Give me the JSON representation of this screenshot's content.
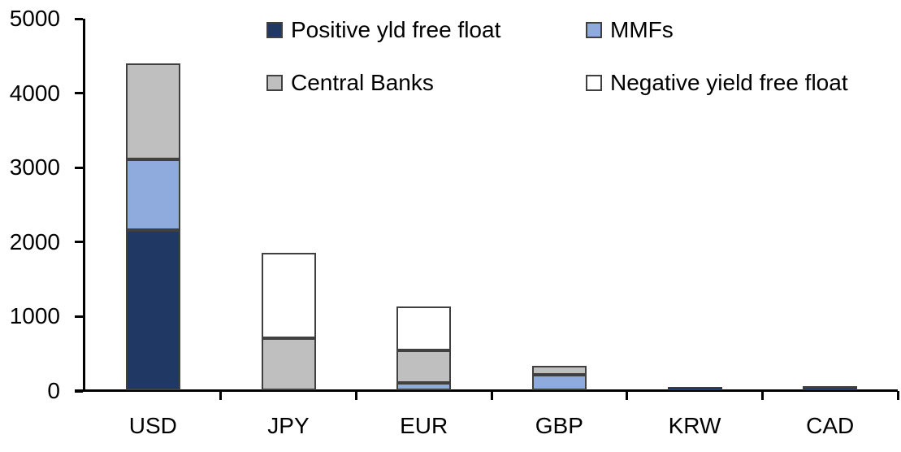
{
  "chart_data": {
    "type": "bar",
    "stacked": true,
    "title": "",
    "xlabel": "",
    "ylabel": "",
    "categories": [
      "USD",
      "JPY",
      "EUR",
      "GBP",
      "KRW",
      "CAD"
    ],
    "series": [
      {
        "name": "Positive yld free float",
        "color": "#1F3864",
        "values": [
          2150,
          0,
          0,
          0,
          45,
          30
        ]
      },
      {
        "name": "MMFs",
        "color": "#8FAADC",
        "values": [
          950,
          0,
          100,
          210,
          0,
          0
        ]
      },
      {
        "name": "Central Banks",
        "color": "#BFBFBF",
        "values": [
          1290,
          700,
          440,
          120,
          0,
          30
        ]
      },
      {
        "name": "Negative yield free float",
        "color": "#FFFFFF",
        "values": [
          0,
          1150,
          580,
          0,
          0,
          0
        ]
      }
    ],
    "totals": [
      4390,
      1850,
      1120,
      330,
      45,
      60
    ],
    "ylim": [
      0,
      5000
    ],
    "ytick_interval": 1000,
    "yticks": [
      "0",
      "1000",
      "2000",
      "3000",
      "4000",
      "5000"
    ],
    "grid": false,
    "legend_position": "top",
    "axis_color": "#000000",
    "bar_border_color": "#404040"
  }
}
